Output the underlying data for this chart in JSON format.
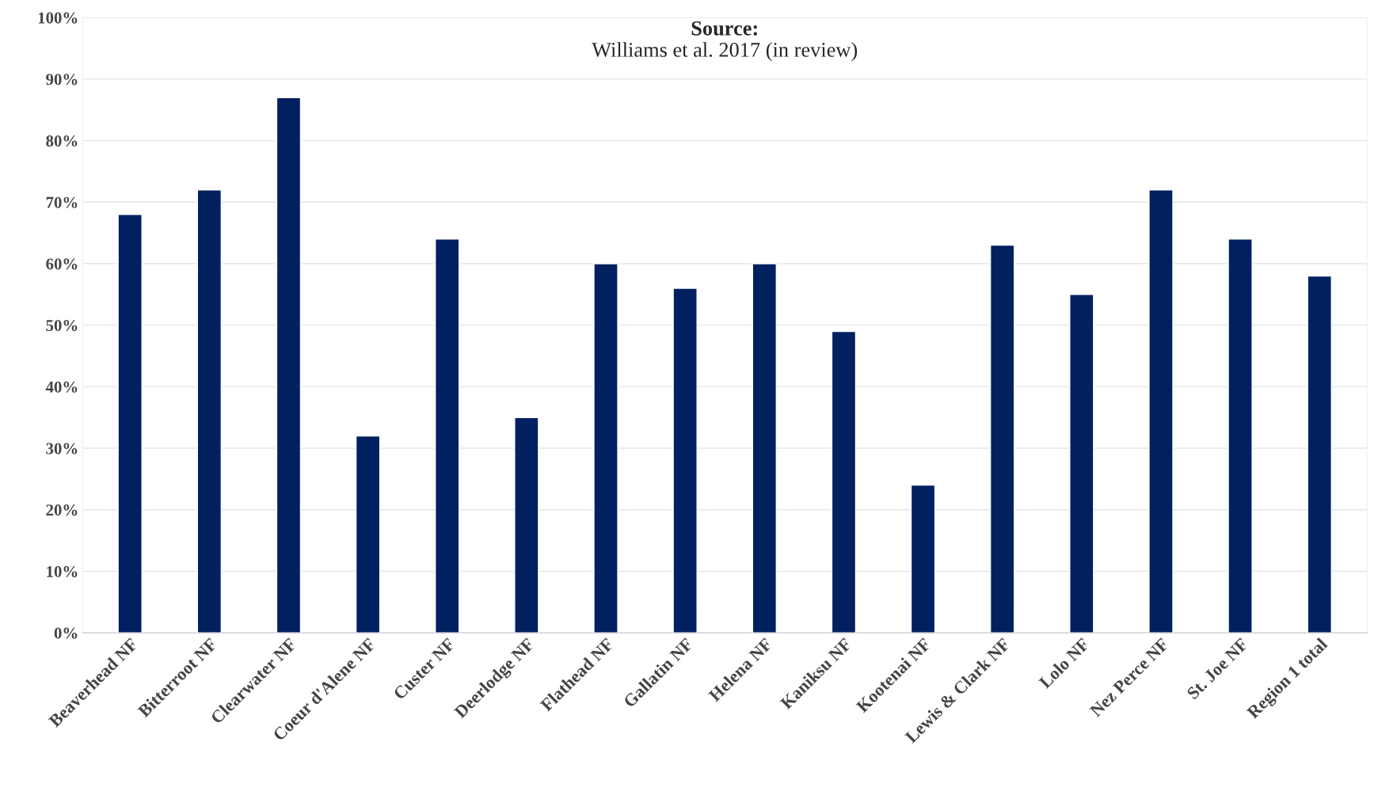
{
  "chart_data": {
    "type": "bar",
    "title": "Source:",
    "subtitle": "Williams et al. 2017 (in review)",
    "categories": [
      "Beaverhead NF",
      "Bitterroot NF",
      "Clearwater NF",
      "Coeur d'Alene NF",
      "Custer NF",
      "Deerlodge NF",
      "Flathead NF",
      "Gallatin NF",
      "Helena NF",
      "Kaniksu NF",
      "Kootenai NF",
      "Lewis & Clark NF",
      "Lolo NF",
      "Nez Perce NF",
      "St. Joe NF",
      "Region 1 total"
    ],
    "values": [
      68,
      72,
      87,
      32,
      64,
      35,
      60,
      56,
      60,
      49,
      24,
      63,
      55,
      72,
      64,
      58
    ],
    "color": "#002060",
    "ylim": [
      0,
      100
    ],
    "yticks": [
      {
        "value": 0,
        "label": "0%"
      },
      {
        "value": 10,
        "label": "10%"
      },
      {
        "value": 20,
        "label": "20%"
      },
      {
        "value": 30,
        "label": "30%"
      },
      {
        "value": 40,
        "label": "40%"
      },
      {
        "value": 50,
        "label": "50%"
      },
      {
        "value": 60,
        "label": "60%"
      },
      {
        "value": 70,
        "label": "70%"
      },
      {
        "value": 80,
        "label": "80%"
      },
      {
        "value": 90,
        "label": "90%"
      },
      {
        "value": 100,
        "label": "100%"
      }
    ],
    "grid": "y"
  }
}
